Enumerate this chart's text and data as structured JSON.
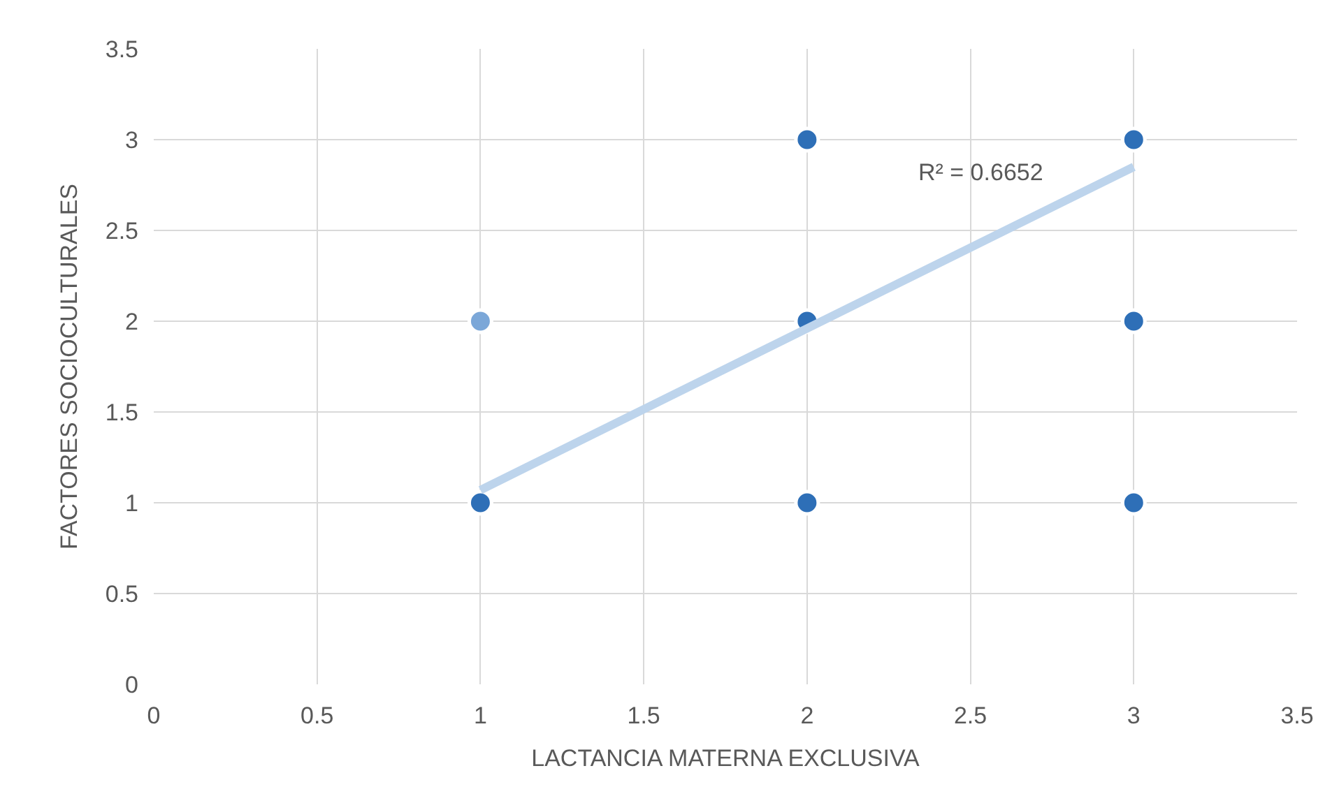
{
  "chart_data": {
    "type": "scatter",
    "xlabel": "LACTANCIA MATERNA EXCLUSIVA",
    "ylabel": "FACTORES SOCIOCULTURALES",
    "xlim": [
      0,
      3.5
    ],
    "xticks": [
      0,
      0.5,
      1,
      1.5,
      2,
      2.5,
      3,
      3.5
    ],
    "ylim": [
      0,
      3.5
    ],
    "yticks": [
      0,
      0.5,
      1,
      1.5,
      2,
      2.5,
      3,
      3.5
    ],
    "grid": true,
    "legend": false,
    "marker": "circle",
    "series": [
      {
        "x": [
          1,
          1,
          2,
          2,
          2,
          3,
          3,
          3
        ],
        "values": [
          1,
          2,
          1,
          2,
          3,
          1,
          2,
          3
        ],
        "colors": [
          "#2e6fb7",
          "#7ba7d8",
          "#2e6fb7",
          "#2e6fb7",
          "#2e6fb7",
          "#2e6fb7",
          "#2e6fb7",
          "#2e6fb7"
        ]
      },
      {
        "type": "line",
        "x": [
          1,
          3
        ],
        "values": [
          1.07,
          2.85
        ],
        "color": "#bdd4ec",
        "marker": "none"
      }
    ],
    "annotations": [
      "R² = 0.6652"
    ]
  }
}
